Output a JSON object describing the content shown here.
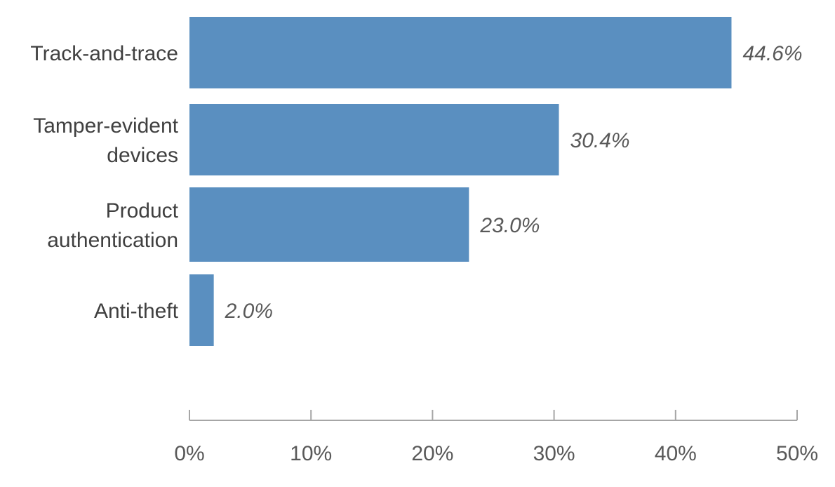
{
  "chart_data": {
    "type": "bar",
    "orientation": "horizontal",
    "categories": [
      [
        "Track-and-trace"
      ],
      [
        "Tamper-evident",
        "devices"
      ],
      [
        "Product",
        "authentication"
      ],
      [
        "Anti-theft"
      ]
    ],
    "values": [
      44.6,
      30.4,
      23.0,
      2.0
    ],
    "value_labels": [
      "44.6%",
      "30.4%",
      "23.0%",
      "2.0%"
    ],
    "xlim": [
      0,
      50
    ],
    "x_ticks": [
      0,
      10,
      20,
      30,
      40,
      50
    ],
    "x_tick_labels": [
      "0%",
      "10%",
      "20%",
      "30%",
      "40%",
      "50%"
    ],
    "grid": false,
    "legend": "none",
    "colors": {
      "bar": "#5a8fc0",
      "axis": "#a6a6a6"
    }
  }
}
